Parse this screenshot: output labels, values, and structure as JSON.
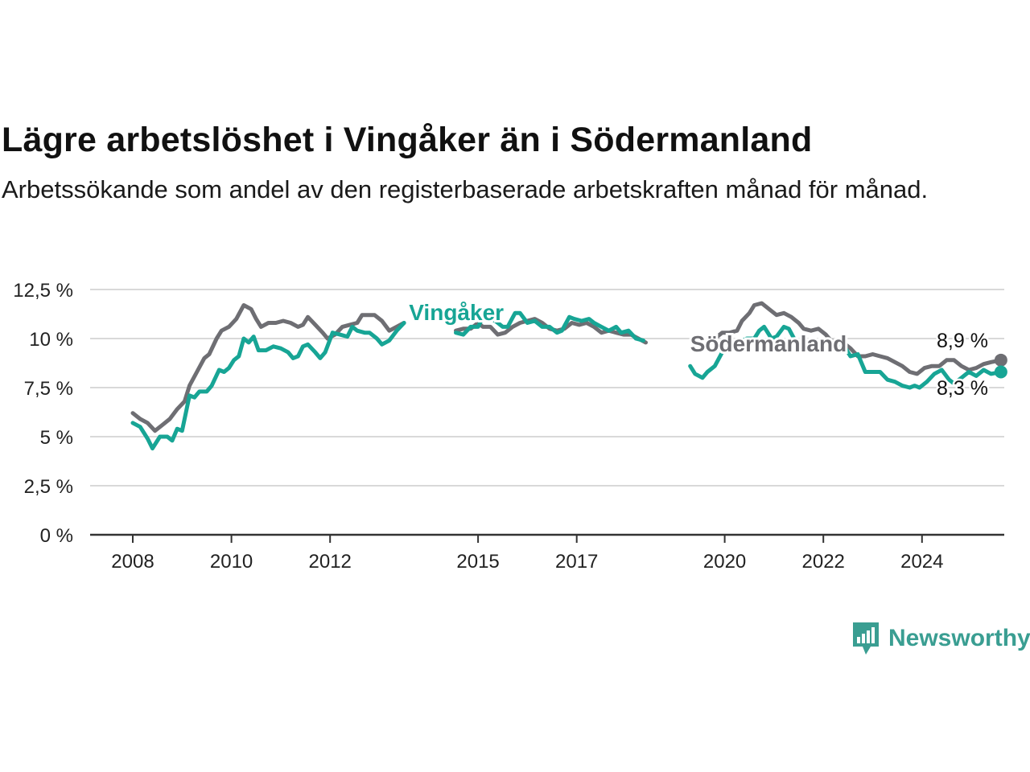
{
  "header": {
    "title": "Lägre arbetslöshet i Vingåker än i Södermanland",
    "subtitle": "Arbetssökande som andel av den registerbaserade arbetskraften månad för månad."
  },
  "logo": {
    "text": "Newsworthy",
    "icon": "bar-chart-speech-icon",
    "color": "#3a9e92"
  },
  "chart_data": {
    "type": "line",
    "title": "Lägre arbetslöshet i Vingåker än i Södermanland",
    "subtitle": "Arbetssökande som andel av den registerbaserade arbetskraften månad för månad.",
    "ylim": [
      0,
      12.5
    ],
    "y_ticks": [
      0,
      2.5,
      5,
      7.5,
      10,
      12.5
    ],
    "y_tick_labels": [
      "0 %",
      "2,5 %",
      "5 %",
      "7,5 %",
      "10 %",
      "12,5 %"
    ],
    "x_ticks": [
      2008,
      2010,
      2012,
      2015,
      2017,
      2020,
      2022,
      2024
    ],
    "x_tick_labels": [
      "2008",
      "2010",
      "2012",
      "2015",
      "2017",
      "2020",
      "2022",
      "2024"
    ],
    "xlim": [
      2007.5,
      2025.75
    ],
    "grid": true,
    "series": [
      {
        "name": "Södermanland",
        "color": "#6e6e73",
        "end_label": "8,9 %",
        "points": [
          [
            2008.0,
            6.2
          ],
          [
            2008.15,
            5.9
          ],
          [
            2008.3,
            5.7
          ],
          [
            2008.45,
            5.3
          ],
          [
            2008.6,
            5.6
          ],
          [
            2008.75,
            5.9
          ],
          [
            2008.9,
            6.4
          ],
          [
            2009.05,
            6.8
          ],
          [
            2009.15,
            7.6
          ],
          [
            2009.3,
            8.3
          ],
          [
            2009.45,
            9.0
          ],
          [
            2009.55,
            9.2
          ],
          [
            2009.7,
            10.0
          ],
          [
            2009.8,
            10.4
          ],
          [
            2009.95,
            10.6
          ],
          [
            2010.1,
            11.0
          ],
          [
            2010.25,
            11.7
          ],
          [
            2010.4,
            11.5
          ],
          [
            2010.5,
            11.0
          ],
          [
            2010.6,
            10.6
          ],
          [
            2010.75,
            10.8
          ],
          [
            2010.9,
            10.8
          ],
          [
            2011.05,
            10.9
          ],
          [
            2011.2,
            10.8
          ],
          [
            2011.35,
            10.6
          ],
          [
            2011.45,
            10.7
          ],
          [
            2011.55,
            11.1
          ],
          [
            2011.7,
            10.7
          ],
          [
            2011.85,
            10.3
          ],
          [
            2011.95,
            10.0
          ],
          [
            2012.1,
            10.2
          ],
          [
            2012.25,
            10.6
          ],
          [
            2012.4,
            10.7
          ],
          [
            2012.55,
            10.8
          ],
          [
            2012.65,
            11.2
          ],
          [
            2012.8,
            11.2
          ],
          [
            2012.9,
            11.2
          ],
          [
            2013.05,
            10.9
          ],
          [
            2013.2,
            10.4
          ],
          [
            2013.35,
            10.6
          ],
          [
            2013.5,
            10.8
          ],
          [
            2014.55,
            10.4
          ],
          [
            2014.7,
            10.5
          ],
          [
            2014.85,
            10.5
          ],
          [
            2015.0,
            10.8
          ],
          [
            2015.1,
            10.6
          ],
          [
            2015.25,
            10.6
          ],
          [
            2015.4,
            10.2
          ],
          [
            2015.55,
            10.3
          ],
          [
            2015.7,
            10.6
          ],
          [
            2015.85,
            10.8
          ],
          [
            2016.0,
            10.9
          ],
          [
            2016.15,
            11.0
          ],
          [
            2016.3,
            10.8
          ],
          [
            2016.45,
            10.5
          ],
          [
            2016.6,
            10.4
          ],
          [
            2016.75,
            10.5
          ],
          [
            2016.9,
            10.8
          ],
          [
            2017.05,
            10.7
          ],
          [
            2017.2,
            10.8
          ],
          [
            2017.35,
            10.6
          ],
          [
            2017.5,
            10.3
          ],
          [
            2017.65,
            10.4
          ],
          [
            2017.8,
            10.3
          ],
          [
            2017.95,
            10.2
          ],
          [
            2018.1,
            10.2
          ],
          [
            2018.25,
            10.0
          ],
          [
            2018.4,
            9.8
          ],
          [
            2019.5,
            9.6
          ],
          [
            2019.65,
            9.8
          ],
          [
            2019.8,
            10.0
          ],
          [
            2019.95,
            10.3
          ],
          [
            2020.1,
            10.3
          ],
          [
            2020.25,
            10.4
          ],
          [
            2020.35,
            10.9
          ],
          [
            2020.5,
            11.3
          ],
          [
            2020.6,
            11.7
          ],
          [
            2020.75,
            11.8
          ],
          [
            2020.9,
            11.5
          ],
          [
            2021.05,
            11.2
          ],
          [
            2021.2,
            11.3
          ],
          [
            2021.35,
            11.1
          ],
          [
            2021.5,
            10.8
          ],
          [
            2021.6,
            10.5
          ],
          [
            2021.75,
            10.4
          ],
          [
            2021.9,
            10.5
          ],
          [
            2022.05,
            10.2
          ],
          [
            2022.15,
            9.9
          ],
          [
            2022.3,
            9.8
          ],
          [
            2022.45,
            9.7
          ],
          [
            2022.55,
            9.5
          ],
          [
            2022.7,
            9.1
          ],
          [
            2022.85,
            9.1
          ],
          [
            2023.0,
            9.2
          ],
          [
            2023.15,
            9.1
          ],
          [
            2023.3,
            9.0
          ],
          [
            2023.45,
            8.8
          ],
          [
            2023.6,
            8.6
          ],
          [
            2023.75,
            8.3
          ],
          [
            2023.9,
            8.2
          ],
          [
            2024.05,
            8.5
          ],
          [
            2024.2,
            8.6
          ],
          [
            2024.35,
            8.6
          ],
          [
            2024.5,
            8.9
          ],
          [
            2024.65,
            8.9
          ],
          [
            2024.8,
            8.6
          ],
          [
            2024.95,
            8.4
          ],
          [
            2025.1,
            8.5
          ],
          [
            2025.25,
            8.7
          ],
          [
            2025.4,
            8.8
          ],
          [
            2025.6,
            8.9
          ]
        ]
      },
      {
        "name": "Vingåker",
        "color": "#17a595",
        "end_label": "8,3 %",
        "points": [
          [
            2008.0,
            5.7
          ],
          [
            2008.15,
            5.5
          ],
          [
            2008.3,
            4.9
          ],
          [
            2008.4,
            4.4
          ],
          [
            2008.55,
            5.0
          ],
          [
            2008.7,
            5.0
          ],
          [
            2008.8,
            4.8
          ],
          [
            2008.9,
            5.4
          ],
          [
            2009.0,
            5.3
          ],
          [
            2009.15,
            7.1
          ],
          [
            2009.25,
            7.0
          ],
          [
            2009.35,
            7.3
          ],
          [
            2009.5,
            7.3
          ],
          [
            2009.6,
            7.6
          ],
          [
            2009.75,
            8.4
          ],
          [
            2009.85,
            8.3
          ],
          [
            2009.95,
            8.5
          ],
          [
            2010.05,
            8.9
          ],
          [
            2010.15,
            9.1
          ],
          [
            2010.25,
            10.0
          ],
          [
            2010.35,
            9.8
          ],
          [
            2010.45,
            10.1
          ],
          [
            2010.55,
            9.4
          ],
          [
            2010.7,
            9.4
          ],
          [
            2010.85,
            9.6
          ],
          [
            2011.0,
            9.5
          ],
          [
            2011.15,
            9.3
          ],
          [
            2011.25,
            9.0
          ],
          [
            2011.35,
            9.1
          ],
          [
            2011.45,
            9.6
          ],
          [
            2011.55,
            9.7
          ],
          [
            2011.7,
            9.3
          ],
          [
            2011.8,
            9.0
          ],
          [
            2011.9,
            9.3
          ],
          [
            2012.05,
            10.3
          ],
          [
            2012.2,
            10.2
          ],
          [
            2012.35,
            10.1
          ],
          [
            2012.45,
            10.6
          ],
          [
            2012.55,
            10.4
          ],
          [
            2012.7,
            10.3
          ],
          [
            2012.8,
            10.3
          ],
          [
            2012.95,
            10.0
          ],
          [
            2013.05,
            9.7
          ],
          [
            2013.2,
            9.9
          ],
          [
            2013.35,
            10.4
          ],
          [
            2013.5,
            10.8
          ],
          [
            2014.55,
            10.3
          ],
          [
            2014.7,
            10.2
          ],
          [
            2014.85,
            10.6
          ],
          [
            2015.0,
            10.6
          ],
          [
            2015.1,
            11.1
          ],
          [
            2015.25,
            11.0
          ],
          [
            2015.35,
            10.9
          ],
          [
            2015.5,
            10.6
          ],
          [
            2015.6,
            10.6
          ],
          [
            2015.75,
            11.3
          ],
          [
            2015.85,
            11.3
          ],
          [
            2016.0,
            10.8
          ],
          [
            2016.15,
            10.9
          ],
          [
            2016.3,
            10.6
          ],
          [
            2016.45,
            10.6
          ],
          [
            2016.6,
            10.3
          ],
          [
            2016.7,
            10.4
          ],
          [
            2016.85,
            11.1
          ],
          [
            2016.95,
            11.0
          ],
          [
            2017.1,
            10.9
          ],
          [
            2017.25,
            11.0
          ],
          [
            2017.35,
            10.8
          ],
          [
            2017.5,
            10.6
          ],
          [
            2017.65,
            10.4
          ],
          [
            2017.8,
            10.6
          ],
          [
            2017.9,
            10.3
          ],
          [
            2018.05,
            10.4
          ],
          [
            2018.2,
            10.0
          ],
          [
            2018.35,
            9.9
          ],
          [
            2019.3,
            8.6
          ],
          [
            2019.4,
            8.2
          ],
          [
            2019.55,
            8.0
          ],
          [
            2019.65,
            8.3
          ],
          [
            2019.8,
            8.6
          ],
          [
            2019.95,
            9.3
          ],
          [
            2020.1,
            9.5
          ],
          [
            2020.2,
            9.8
          ],
          [
            2020.35,
            9.9
          ],
          [
            2020.45,
            10.0
          ],
          [
            2020.6,
            10.0
          ],
          [
            2020.7,
            10.4
          ],
          [
            2020.8,
            10.6
          ],
          [
            2020.95,
            10.0
          ],
          [
            2021.05,
            10.1
          ],
          [
            2021.2,
            10.6
          ],
          [
            2021.3,
            10.5
          ],
          [
            2021.45,
            9.8
          ],
          [
            2021.6,
            9.5
          ],
          [
            2021.75,
            9.5
          ],
          [
            2021.9,
            9.4
          ],
          [
            2022.05,
            9.8
          ],
          [
            2022.15,
            9.5
          ],
          [
            2022.3,
            9.6
          ],
          [
            2022.4,
            9.7
          ],
          [
            2022.55,
            9.1
          ],
          [
            2022.7,
            9.2
          ],
          [
            2022.85,
            8.3
          ],
          [
            2023.0,
            8.3
          ],
          [
            2023.15,
            8.3
          ],
          [
            2023.3,
            7.9
          ],
          [
            2023.45,
            7.8
          ],
          [
            2023.6,
            7.6
          ],
          [
            2023.75,
            7.5
          ],
          [
            2023.85,
            7.6
          ],
          [
            2023.95,
            7.5
          ],
          [
            2024.1,
            7.8
          ],
          [
            2024.25,
            8.2
          ],
          [
            2024.4,
            8.4
          ],
          [
            2024.55,
            7.9
          ],
          [
            2024.65,
            7.7
          ],
          [
            2024.8,
            8.0
          ],
          [
            2024.95,
            8.3
          ],
          [
            2025.1,
            8.1
          ],
          [
            2025.25,
            8.4
          ],
          [
            2025.4,
            8.2
          ],
          [
            2025.6,
            8.3
          ]
        ]
      }
    ],
    "annotations": [
      {
        "series": "Vingåker",
        "text": "Vingåker",
        "x": 2013.6,
        "y": 10.95
      },
      {
        "series": "Södermanland",
        "text": "Södermanland",
        "x": 2019.3,
        "y": 9.35
      }
    ]
  }
}
